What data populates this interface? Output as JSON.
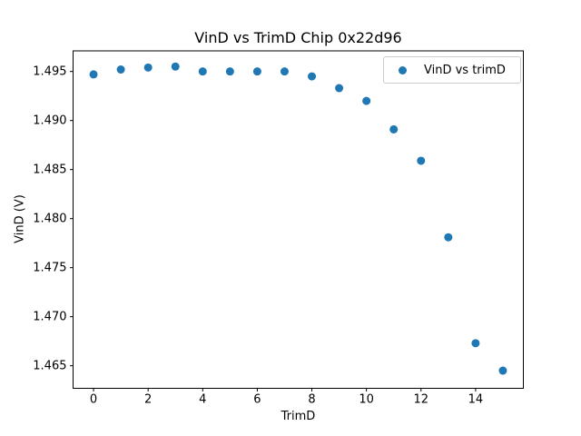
{
  "chart_data": {
    "type": "scatter",
    "title": "VinD vs TrimD Chip 0x22d96",
    "xlabel": "TrimD",
    "ylabel": "VinD (V)",
    "x": [
      0,
      1,
      2,
      3,
      4,
      5,
      6,
      7,
      8,
      9,
      10,
      11,
      12,
      13,
      14,
      15
    ],
    "y": [
      1.4947,
      1.4952,
      1.4954,
      1.4955,
      1.495,
      1.495,
      1.495,
      1.495,
      1.4945,
      1.4933,
      1.492,
      1.4891,
      1.4859,
      1.4781,
      1.4673,
      1.4645
    ],
    "xlim": [
      -0.75,
      15.75
    ],
    "ylim": [
      1.4627,
      1.4971
    ],
    "xticks": [
      0,
      2,
      4,
      6,
      8,
      10,
      12,
      14
    ],
    "xtick_labels": [
      "0",
      "2",
      "4",
      "6",
      "8",
      "10",
      "12",
      "14"
    ],
    "yticks": [
      1.465,
      1.47,
      1.475,
      1.48,
      1.485,
      1.49,
      1.495
    ],
    "ytick_labels": [
      "1.465",
      "1.470",
      "1.475",
      "1.480",
      "1.485",
      "1.490",
      "1.495"
    ],
    "grid": false,
    "marker": {
      "shape": "circle",
      "color": "#1f77b4",
      "radius_px": 4.5
    },
    "axes_color": "#000000",
    "background_color": "#ffffff",
    "legend": {
      "position": "upper right",
      "entries": [
        {
          "label": "VinD vs trimD",
          "marker_color": "#1f77b4"
        }
      ]
    }
  }
}
